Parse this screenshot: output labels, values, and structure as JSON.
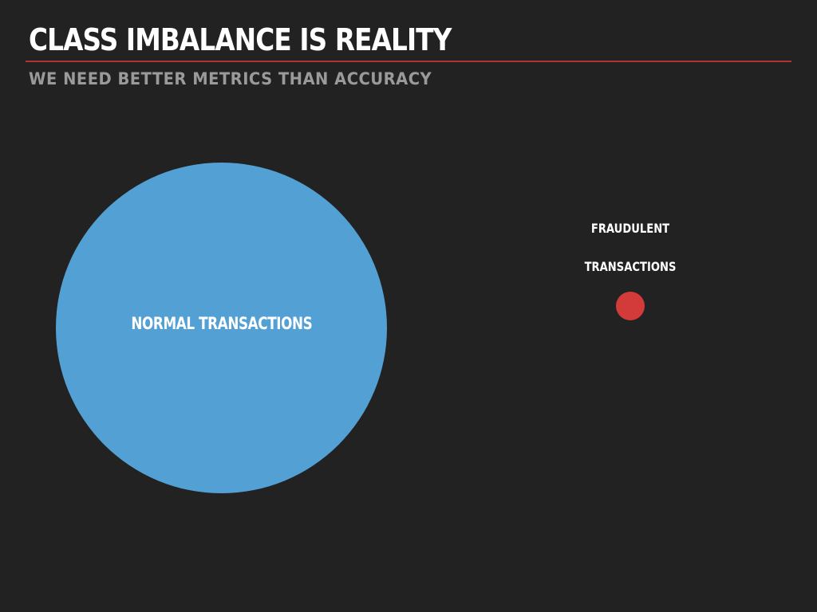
{
  "slide": {
    "title": "CLASS IMBALANCE IS REALITY",
    "subtitle": "WE NEED BETTER METRICS THAN ACCURACY"
  },
  "diagram": {
    "normal": {
      "label": "NORMAL TRANSACTIONS",
      "color": "#53a0d5"
    },
    "fraudulent": {
      "label_line1": "FRAUDULENT",
      "label_line2": "TRANSACTIONS",
      "color": "#d23b3a"
    }
  },
  "colors": {
    "background": "#222222",
    "rule": "#b03434",
    "title": "#ffffff",
    "subtitle": "#9a9a9a"
  }
}
